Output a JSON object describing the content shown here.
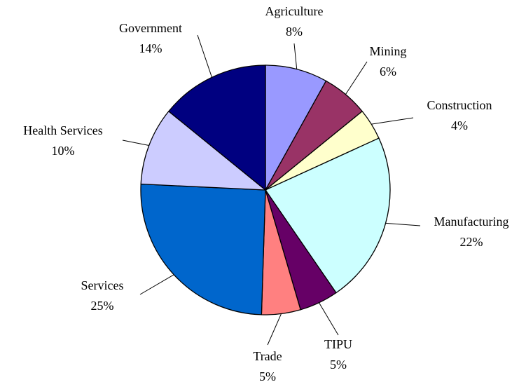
{
  "chart_data": {
    "type": "pie",
    "categories": [
      "Agriculture",
      "Mining",
      "Construction",
      "Manufacturing",
      "TIPU",
      "Trade",
      "Services",
      "Health Services",
      "Government"
    ],
    "values": [
      8,
      6,
      4,
      22,
      5,
      5,
      25,
      10,
      14
    ],
    "value_labels": [
      "8%",
      "6%",
      "4%",
      "22%",
      "5%",
      "5%",
      "25%",
      "10%",
      "14%"
    ],
    "colors": [
      "#9999ff",
      "#993366",
      "#ffffcc",
      "#ccffff",
      "#660066",
      "#ff8080",
      "#0066cc",
      "#ccccff",
      "#000080"
    ]
  }
}
